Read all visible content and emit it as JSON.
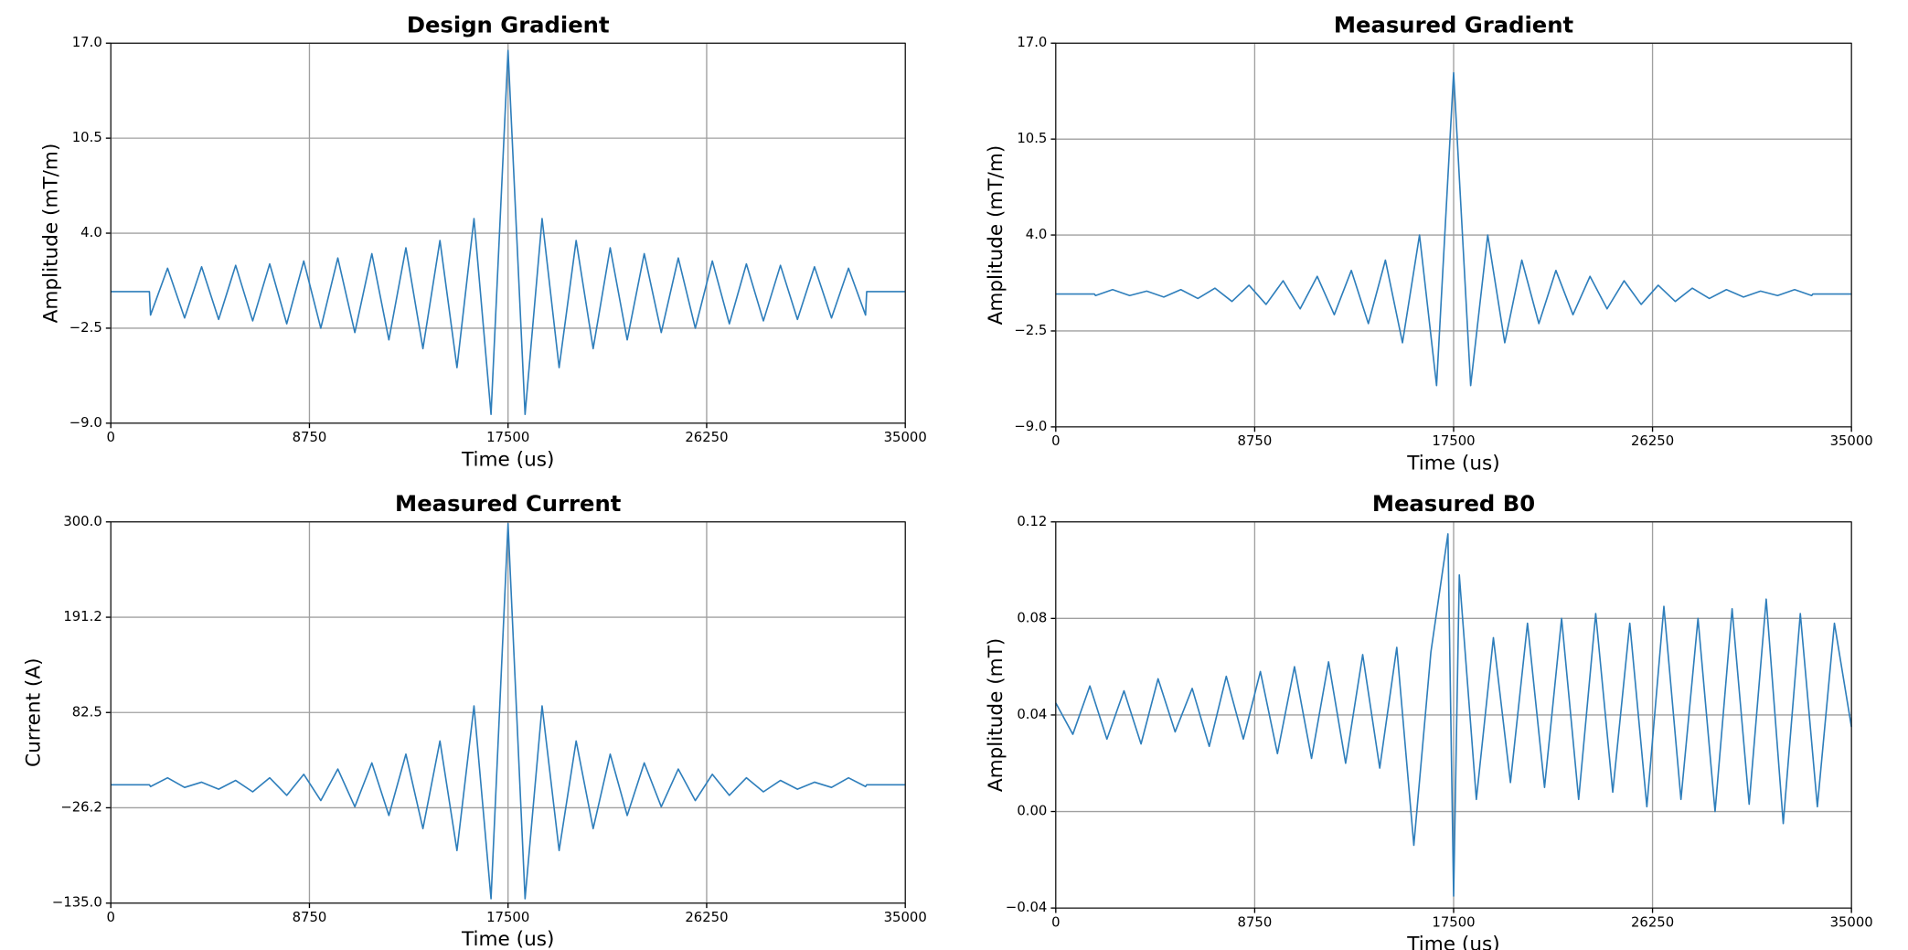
{
  "chart_data": [
    {
      "type": "line",
      "title": "Design Gradient",
      "xlabel": "Time (us)",
      "ylabel": "Amplitude (mT/m)",
      "color": "#2e7ebb",
      "grid": true,
      "xlim": [
        0,
        35000
      ],
      "xticks": [
        0,
        8750,
        17500,
        26250,
        35000
      ],
      "ylim": [
        -9,
        17
      ],
      "yticks": [
        {
          "value": -9,
          "label": "−9.0"
        },
        {
          "value": -2.5,
          "label": "−2.5"
        },
        {
          "value": 4,
          "label": "4.0"
        },
        10.5,
        {
          "value": 17,
          "label": "17.0"
        }
      ],
      "x": [
        0,
        1700,
        1750,
        2500,
        3250,
        4000,
        4750,
        5500,
        6250,
        7000,
        7750,
        8500,
        9250,
        10000,
        10750,
        11500,
        12250,
        13000,
        13750,
        14500,
        15250,
        16000,
        16750,
        17500,
        18250,
        19000,
        19750,
        20500,
        21250,
        22000,
        22750,
        23500,
        24250,
        25000,
        25750,
        26500,
        27250,
        28000,
        28750,
        29500,
        30250,
        31000,
        31750,
        32500,
        33250,
        33300,
        35000
      ],
      "values": [
        0,
        0,
        -1.6,
        1.6,
        -1.8,
        1.7,
        -1.9,
        1.8,
        -2.0,
        1.9,
        -2.2,
        2.1,
        -2.5,
        2.3,
        -2.8,
        2.6,
        -3.3,
        3.0,
        -3.9,
        3.5,
        -5.2,
        5.0,
        -8.4,
        16.5,
        -8.4,
        5.0,
        -5.2,
        3.5,
        -3.9,
        3.0,
        -3.3,
        2.6,
        -2.8,
        2.3,
        -2.5,
        2.1,
        -2.2,
        1.9,
        -2.0,
        1.8,
        -1.9,
        1.7,
        -1.8,
        1.6,
        -1.6,
        0,
        0
      ]
    },
    {
      "type": "line",
      "title": "Measured Gradient",
      "xlabel": "Time (us)",
      "ylabel": "Amplitude (mT/m)",
      "color": "#2e7ebb",
      "grid": true,
      "xlim": [
        0,
        35000
      ],
      "xticks": [
        0,
        8750,
        17500,
        26250,
        35000
      ],
      "ylim": [
        -9,
        17
      ],
      "yticks": [
        {
          "value": -9,
          "label": "−9.0"
        },
        {
          "value": -2.5,
          "label": "−2.5"
        },
        {
          "value": 4,
          "label": "4.0"
        },
        10.5,
        {
          "value": 17,
          "label": "17.0"
        }
      ],
      "x": [
        0,
        1700,
        1750,
        2500,
        3250,
        4000,
        4750,
        5500,
        6250,
        7000,
        7750,
        8500,
        9250,
        10000,
        10750,
        11500,
        12250,
        13000,
        13750,
        14500,
        15250,
        16000,
        16750,
        17500,
        18250,
        19000,
        19750,
        20500,
        21250,
        22000,
        22750,
        23500,
        24250,
        25000,
        25750,
        26500,
        27250,
        28000,
        28750,
        29500,
        30250,
        31000,
        31750,
        32500,
        33250,
        33300,
        35000
      ],
      "values": [
        0,
        0,
        -0.1,
        0.3,
        -0.1,
        0.2,
        -0.2,
        0.3,
        -0.3,
        0.4,
        -0.5,
        0.6,
        -0.7,
        0.9,
        -1.0,
        1.2,
        -1.4,
        1.6,
        -2.0,
        2.3,
        -3.3,
        4.0,
        -6.2,
        15,
        -6.2,
        4.0,
        -3.3,
        2.3,
        -2.0,
        1.6,
        -1.4,
        1.2,
        -1.0,
        0.9,
        -0.7,
        0.6,
        -0.5,
        0.4,
        -0.3,
        0.3,
        -0.2,
        0.2,
        -0.1,
        0.3,
        -0.1,
        0,
        0
      ]
    },
    {
      "type": "line",
      "title": "Measured Current",
      "xlabel": "Time (us)",
      "ylabel": "Current (A)",
      "color": "#2e7ebb",
      "grid": true,
      "xlim": [
        0,
        35000
      ],
      "xticks": [
        0,
        8750,
        17500,
        26250,
        35000
      ],
      "ylim": [
        -135,
        300
      ],
      "yticks": [
        {
          "value": -135,
          "label": "−135.0"
        },
        {
          "value": -26.2,
          "label": "−26.2"
        },
        82.5,
        191.2,
        {
          "value": 300,
          "label": "300.0"
        }
      ],
      "x": [
        0,
        1700,
        1750,
        2500,
        3250,
        4000,
        4750,
        5500,
        6250,
        7000,
        7750,
        8500,
        9250,
        10000,
        10750,
        11500,
        12250,
        13000,
        13750,
        14500,
        15250,
        16000,
        16750,
        17500,
        18250,
        19000,
        19750,
        20500,
        21250,
        22000,
        22750,
        23500,
        24250,
        25000,
        25750,
        26500,
        27250,
        28000,
        28750,
        29500,
        30250,
        31000,
        31750,
        32500,
        33250,
        33300,
        35000
      ],
      "values": [
        0,
        0,
        -2,
        8,
        -3,
        3,
        -5,
        5,
        -8,
        8,
        -12,
        12,
        -18,
        18,
        -25,
        25,
        -35,
        35,
        -50,
        50,
        -75,
        90,
        -130,
        298,
        -130,
        90,
        -75,
        50,
        -50,
        35,
        -35,
        25,
        -25,
        18,
        -18,
        12,
        -12,
        8,
        -8,
        5,
        -5,
        3,
        -3,
        8,
        -2,
        0,
        0
      ]
    },
    {
      "type": "line",
      "title": "Measured B0",
      "xlabel": "Time (us)",
      "ylabel": "Amplitude (mT)",
      "color": "#2e7ebb",
      "grid": true,
      "xlim": [
        0,
        35000
      ],
      "xticks": [
        0,
        8750,
        17500,
        26250,
        35000
      ],
      "ylim": [
        -0.04,
        0.12
      ],
      "yticks": [
        {
          "value": -0.04,
          "label": "−0.04"
        },
        {
          "value": 0,
          "label": "0.00"
        },
        0.04,
        0.08,
        0.12
      ],
      "x": [
        0,
        750,
        1500,
        2250,
        3000,
        3750,
        4500,
        5250,
        6000,
        6750,
        7500,
        8250,
        9000,
        9750,
        10500,
        11250,
        12000,
        12750,
        13500,
        14250,
        15000,
        15750,
        16500,
        17250,
        17500,
        17750,
        18500,
        19250,
        20000,
        20750,
        21500,
        22250,
        23000,
        23750,
        24500,
        25250,
        26000,
        26750,
        27500,
        28250,
        29000,
        29750,
        30500,
        31250,
        32000,
        32750,
        33500,
        34250,
        35000
      ],
      "values": [
        0.045,
        0.032,
        0.052,
        0.03,
        0.05,
        0.028,
        0.055,
        0.033,
        0.051,
        0.027,
        0.056,
        0.03,
        0.058,
        0.024,
        0.06,
        0.022,
        0.062,
        0.02,
        0.065,
        0.018,
        0.068,
        -0.014,
        0.066,
        0.115,
        -0.035,
        0.098,
        0.005,
        0.072,
        0.012,
        0.078,
        0.01,
        0.08,
        0.005,
        0.082,
        0.008,
        0.078,
        0.002,
        0.085,
        0.005,
        0.08,
        0.0,
        0.084,
        0.003,
        0.088,
        -0.005,
        0.082,
        0.002,
        0.078,
        0.035
      ]
    }
  ]
}
